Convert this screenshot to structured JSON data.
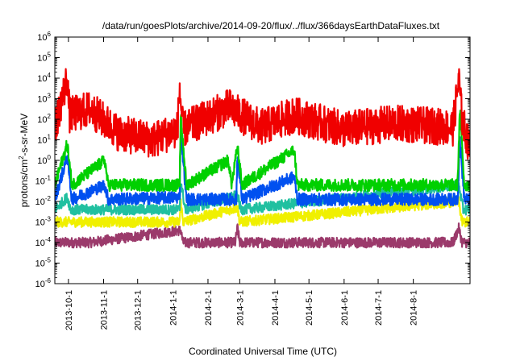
{
  "chart_data": {
    "type": "line",
    "title": "/data/run/goesPlots/archive/2014-09-20/flux/../flux/366daysEarthDataFluxes.txt",
    "xlabel": "Coordinated Universal Time (UTC)",
    "ylabel_parts": {
      "pre": "protons/cm",
      "sup": "2",
      "post": "-s-sr-MeV"
    },
    "y_scale": "log",
    "ylim_exp": [
      -6,
      6
    ],
    "y_ticks": [
      {
        "exp": -6,
        "label": "-6"
      },
      {
        "exp": -5,
        "label": "-5"
      },
      {
        "exp": -4,
        "label": "-4"
      },
      {
        "exp": -3,
        "label": "-3"
      },
      {
        "exp": -2,
        "label": "-2"
      },
      {
        "exp": -1,
        "label": "-1"
      },
      {
        "exp": 0,
        "label": "0"
      },
      {
        "exp": 1,
        "label": "1"
      },
      {
        "exp": 2,
        "label": "2"
      },
      {
        "exp": 3,
        "label": "3"
      },
      {
        "exp": 4,
        "label": "4"
      },
      {
        "exp": 5,
        "label": "5"
      },
      {
        "exp": 6,
        "label": "6"
      }
    ],
    "y_tick_base": "10",
    "x_range": [
      "2013-09-19",
      "2014-09-20"
    ],
    "x_ticks": [
      {
        "date": "2013-10-01",
        "label": "2013-10-1"
      },
      {
        "date": "2013-11-01",
        "label": "2013-11-1"
      },
      {
        "date": "2013-12-01",
        "label": "2013-12-1"
      },
      {
        "date": "2014-01-01",
        "label": "2014-1-1"
      },
      {
        "date": "2014-02-01",
        "label": "2014-2-1"
      },
      {
        "date": "2014-03-01",
        "label": "2014-3-1"
      },
      {
        "date": "2014-04-01",
        "label": "2014-4-1"
      },
      {
        "date": "2014-05-01",
        "label": "2014-5-1"
      },
      {
        "date": "2014-06-01",
        "label": "2014-6-1"
      },
      {
        "date": "2014-07-01",
        "label": "2014-7-1"
      },
      {
        "date": "2014-08-01",
        "label": "2014-8-1"
      }
    ],
    "grid": false,
    "legend": "none",
    "series": [
      {
        "color": "#9b3a6b",
        "base_log": -4.0,
        "noise": 0.25,
        "points": [
          [
            "2013-09-19",
            -4.0
          ],
          [
            "2013-10-20",
            -4.0
          ],
          [
            "2014-01-08",
            -3.4
          ],
          [
            "2014-01-10",
            -4.0
          ],
          [
            "2014-02-25",
            -4.0
          ],
          [
            "2014-02-27",
            -3.3
          ],
          [
            "2014-03-01",
            -4.0
          ],
          [
            "2014-09-05",
            -4.0
          ],
          [
            "2014-09-10",
            -3.3
          ],
          [
            "2014-09-13",
            -4.0
          ],
          [
            "2014-09-20",
            -4.0
          ]
        ]
      },
      {
        "color": "#f0f000",
        "base_log": -3.0,
        "noise": 0.25,
        "points": [
          [
            "2013-09-19",
            -3.0
          ],
          [
            "2014-01-07",
            -3.0
          ],
          [
            "2014-01-08",
            -2.0
          ],
          [
            "2014-01-10",
            -3.0
          ],
          [
            "2014-02-27",
            -2.3
          ],
          [
            "2014-03-01",
            -3.0
          ],
          [
            "2014-09-10",
            -2.0
          ],
          [
            "2014-09-13",
            -3.0
          ],
          [
            "2014-09-20",
            -3.0
          ]
        ]
      },
      {
        "color": "#20c0a0",
        "base_log": -2.45,
        "noise": 0.25,
        "points": [
          [
            "2013-09-19",
            -2.4
          ],
          [
            "2013-09-30",
            -1.8
          ],
          [
            "2013-10-03",
            -2.4
          ],
          [
            "2014-01-07",
            -2.4
          ],
          [
            "2014-01-08",
            -1.0
          ],
          [
            "2014-01-12",
            -2.4
          ],
          [
            "2014-02-27",
            -1.7
          ],
          [
            "2014-03-02",
            -2.4
          ],
          [
            "2014-09-10",
            -1.2
          ],
          [
            "2014-09-14",
            -2.4
          ],
          [
            "2014-09-20",
            -2.4
          ]
        ]
      },
      {
        "color": "#0050f0",
        "base_log": -1.9,
        "noise": 0.3,
        "points": [
          [
            "2013-09-19",
            -1.9
          ],
          [
            "2013-09-30",
            0.2
          ],
          [
            "2013-10-04",
            -1.9
          ],
          [
            "2013-11-02",
            -1.2
          ],
          [
            "2013-11-05",
            -1.9
          ],
          [
            "2014-01-07",
            -1.8
          ],
          [
            "2014-01-08",
            1.5
          ],
          [
            "2014-01-13",
            -1.9
          ],
          [
            "2014-02-26",
            -1.9
          ],
          [
            "2014-02-27",
            0.3
          ],
          [
            "2014-03-03",
            -1.9
          ],
          [
            "2014-04-18",
            -0.8
          ],
          [
            "2014-04-21",
            -1.9
          ],
          [
            "2014-09-09",
            -1.9
          ],
          [
            "2014-09-11",
            1.0
          ],
          [
            "2014-09-15",
            -1.9
          ],
          [
            "2014-09-20",
            -1.9
          ]
        ]
      },
      {
        "color": "#00d000",
        "base_log": -1.2,
        "noise": 0.3,
        "points": [
          [
            "2013-09-19",
            -1.2
          ],
          [
            "2013-09-30",
            0.8
          ],
          [
            "2013-10-04",
            -1.2
          ],
          [
            "2013-11-02",
            0.0
          ],
          [
            "2013-11-05",
            -1.2
          ],
          [
            "2014-01-07",
            -1.2
          ],
          [
            "2014-01-08",
            2.2
          ],
          [
            "2014-01-13",
            -1.2
          ],
          [
            "2014-02-19",
            0.0
          ],
          [
            "2014-02-22",
            -1.2
          ],
          [
            "2014-02-27",
            0.7
          ],
          [
            "2014-03-03",
            -1.2
          ],
          [
            "2014-04-18",
            0.5
          ],
          [
            "2014-04-21",
            -1.2
          ],
          [
            "2014-09-09",
            -1.2
          ],
          [
            "2014-09-11",
            2.5
          ],
          [
            "2014-09-15",
            -1.2
          ],
          [
            "2014-09-20",
            -1.2
          ]
        ]
      },
      {
        "color": "#f00000",
        "base_log": 1.7,
        "noise": 0.9,
        "points": [
          [
            "2013-09-19",
            1.6
          ],
          [
            "2013-09-30",
            4.0
          ],
          [
            "2013-10-02",
            2.2
          ],
          [
            "2013-10-20",
            2.5
          ],
          [
            "2013-11-15",
            1.3
          ],
          [
            "2013-12-15",
            1.0
          ],
          [
            "2014-01-05",
            1.5
          ],
          [
            "2014-01-07",
            3.5
          ],
          [
            "2014-01-10",
            1.5
          ],
          [
            "2014-02-20",
            2.6
          ],
          [
            "2014-02-27",
            2.3
          ],
          [
            "2014-03-20",
            1.6
          ],
          [
            "2014-04-18",
            2.2
          ],
          [
            "2014-06-01",
            1.5
          ],
          [
            "2014-07-15",
            1.8
          ],
          [
            "2014-09-05",
            1.6
          ],
          [
            "2014-09-10",
            4.0
          ],
          [
            "2014-09-13",
            2.0
          ],
          [
            "2014-09-20",
            0.5
          ]
        ]
      }
    ]
  }
}
